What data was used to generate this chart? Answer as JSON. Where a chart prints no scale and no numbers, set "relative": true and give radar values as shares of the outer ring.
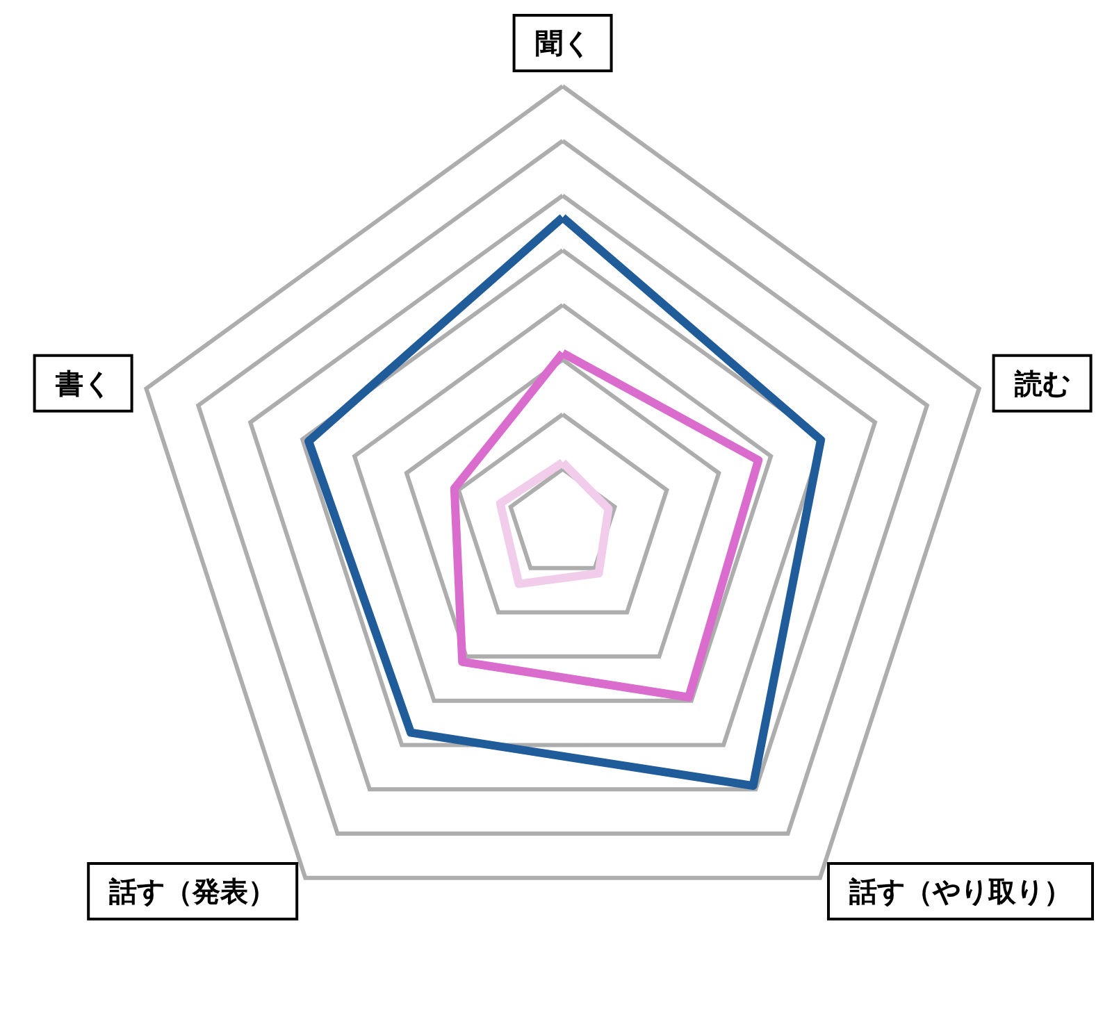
{
  "chart_data": {
    "type": "radar",
    "relative": true,
    "categories": [
      "聞く",
      "読む",
      "話す（やり取り）",
      "話す（発表）",
      "書く"
    ],
    "grid": true,
    "marker": "none",
    "line_style": "solid",
    "series": [
      {
        "color": "#1f5c99",
        "values": [
          0.7,
          0.62,
          0.74,
          0.59,
          0.61
        ]
      },
      {
        "color": "#d96ccc",
        "values": [
          0.39,
          0.47,
          0.49,
          0.39,
          0.26
        ]
      },
      {
        "color": "#f2cdeb",
        "values": [
          0.14,
          0.11,
          0.14,
          0.17,
          0.15
        ]
      }
    ]
  }
}
